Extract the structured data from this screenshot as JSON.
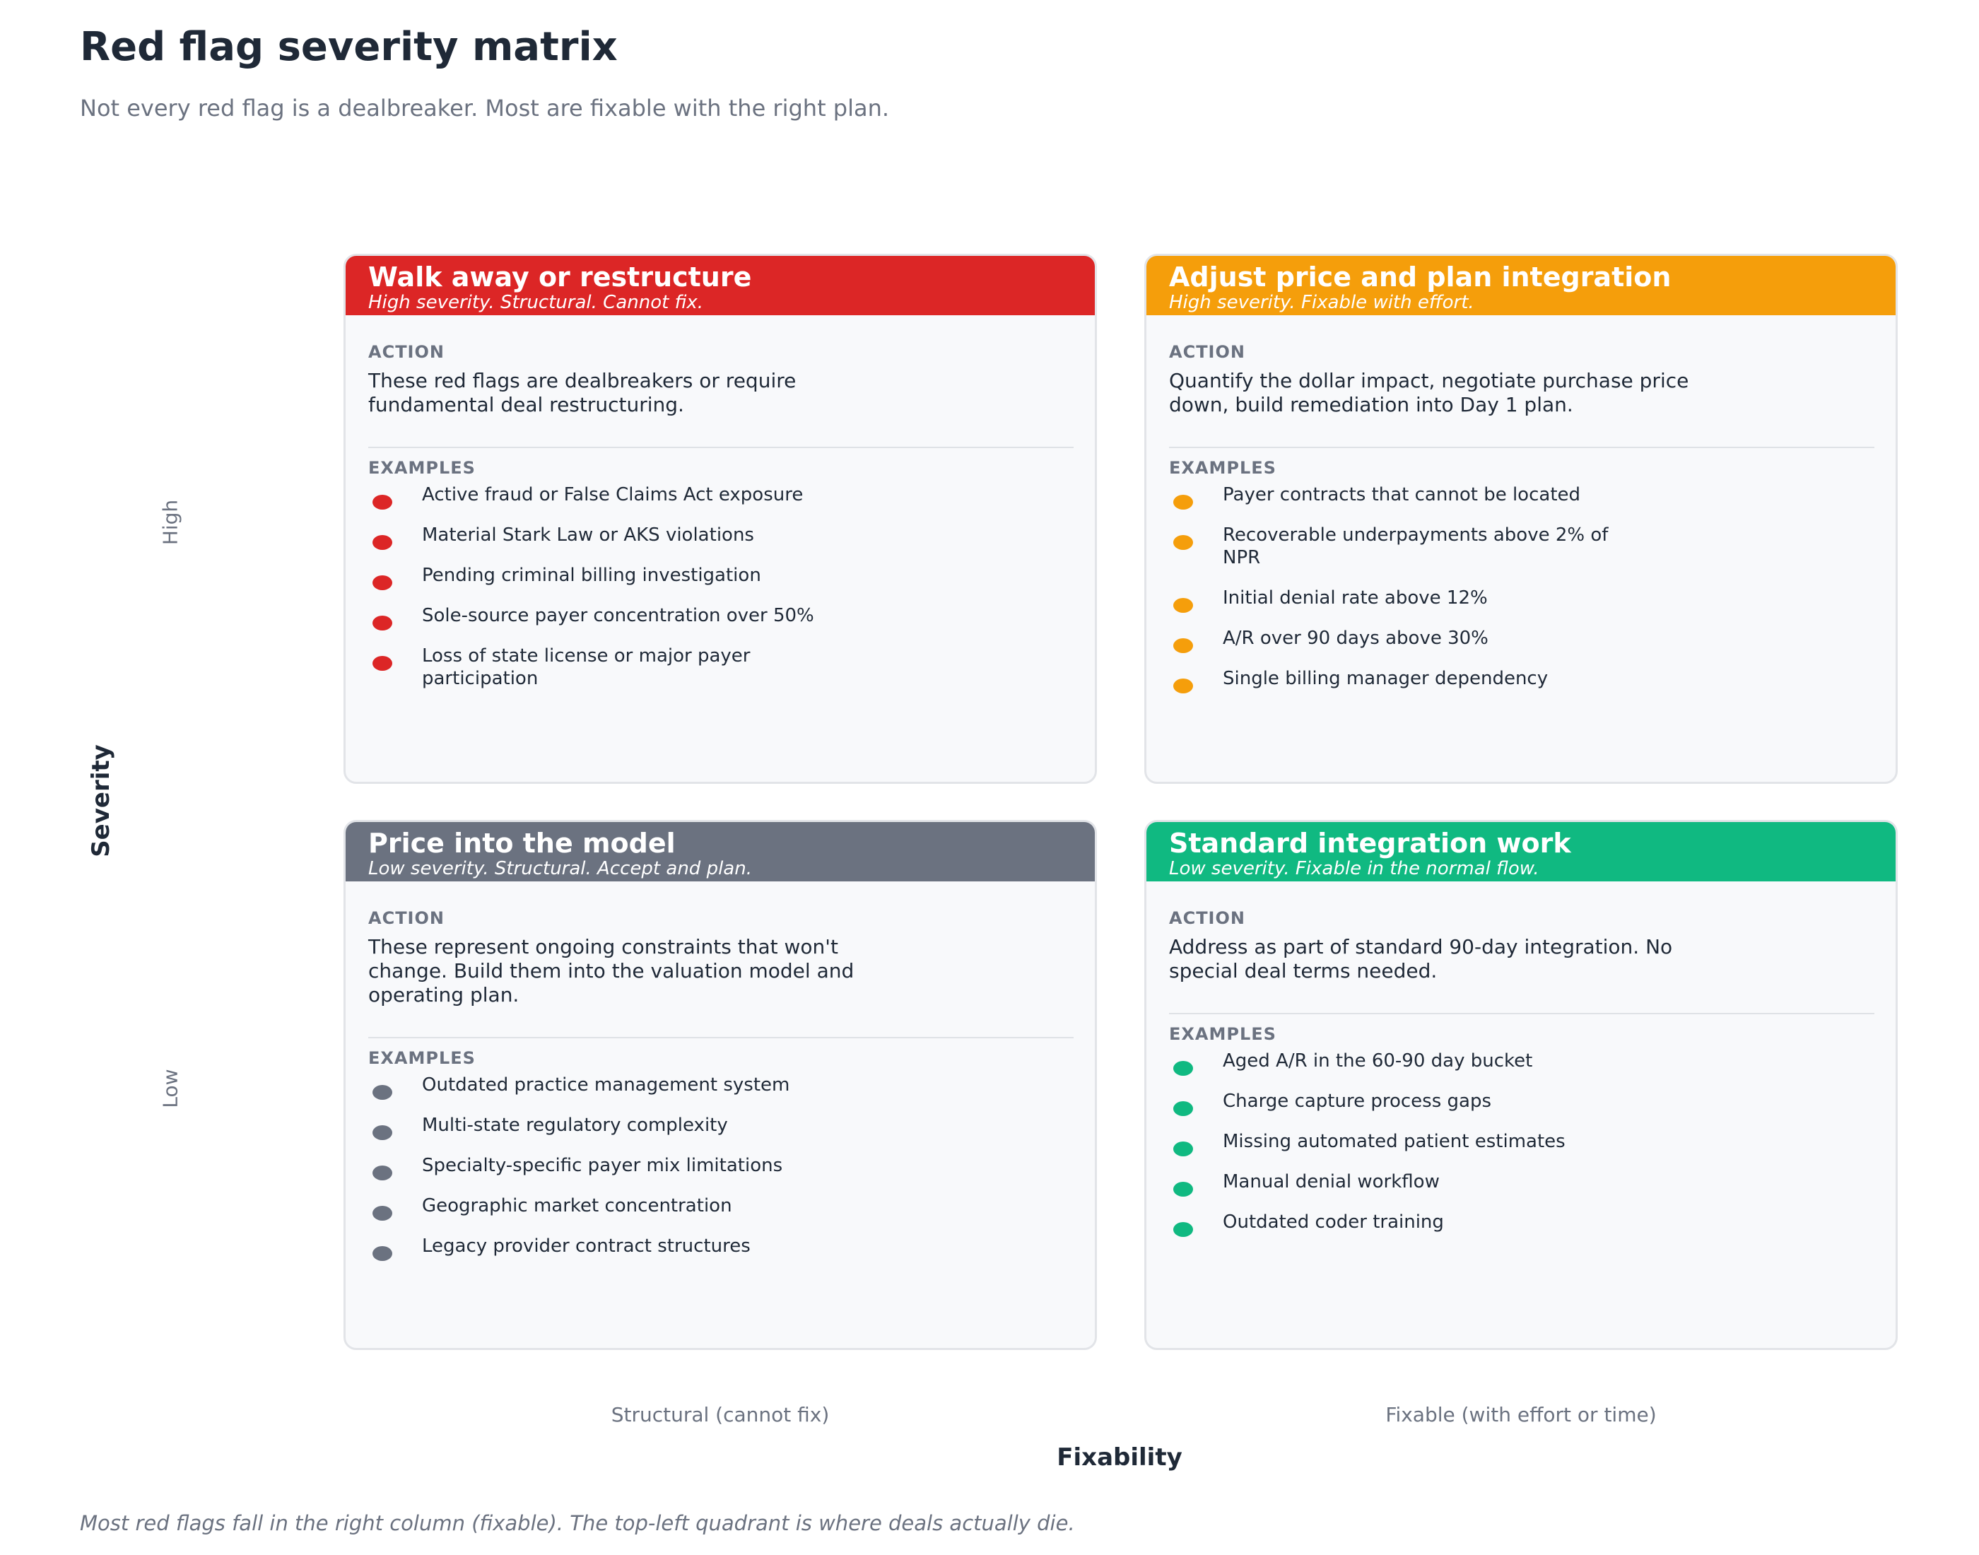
{
  "header": {
    "title": "Red flag severity matrix",
    "subtitle": "Not every red flag is a dealbreaker. Most are fixable with the right plan."
  },
  "axes": {
    "y_title": "Severity",
    "y_high": "High",
    "y_low": "Low",
    "x_title": "Fixability",
    "x_left": "Structural (cannot fix)",
    "x_right": "Fixable (with effort or time)"
  },
  "section_labels": {
    "action": "ACTION",
    "examples": "EXAMPLES"
  },
  "quadrants": [
    {
      "title": "Walk away or restructure",
      "subtitle": "High severity. Structural. Cannot fix.",
      "color": "#dc2626",
      "action": "These red flags are dealbreakers or require fundamental deal restructuring.",
      "examples": [
        "Active fraud or False Claims Act exposure",
        "Material Stark Law or AKS violations",
        "Pending criminal billing investigation",
        "Sole-source payer concentration over 50%",
        "Loss of state license or major payer participation"
      ]
    },
    {
      "title": "Adjust price and plan integration",
      "subtitle": "High severity. Fixable with effort.",
      "color": "#f59e0b",
      "action": "Quantify the dollar impact, negotiate purchase price down, build remediation into Day 1 plan.",
      "examples": [
        "Payer contracts that cannot be located",
        "Recoverable underpayments above 2% of NPR",
        "Initial denial rate above 12%",
        "A/R over 90 days above 30%",
        "Single billing manager dependency"
      ]
    },
    {
      "title": "Price into the model",
      "subtitle": "Low severity. Structural. Accept and plan.",
      "color": "#6b7280",
      "action": "These represent ongoing constraints that won't change. Build them into the valuation model and operating plan.",
      "examples": [
        "Outdated practice management system",
        "Multi-state regulatory complexity",
        "Specialty-specific payer mix limitations",
        "Geographic market concentration",
        "Legacy provider contract structures"
      ]
    },
    {
      "title": "Standard integration work",
      "subtitle": "Low severity. Fixable in the normal flow.",
      "color": "#10b981",
      "action": "Address as part of standard 90-day integration. No special deal terms needed.",
      "examples": [
        "Aged A/R in the 60-90 day bucket",
        "Charge capture process gaps",
        "Missing automated patient estimates",
        "Manual denial workflow",
        "Outdated coder training"
      ]
    }
  ],
  "footnote": "Most red flags fall in the right column (fixable). The top-left quadrant is where deals actually die."
}
